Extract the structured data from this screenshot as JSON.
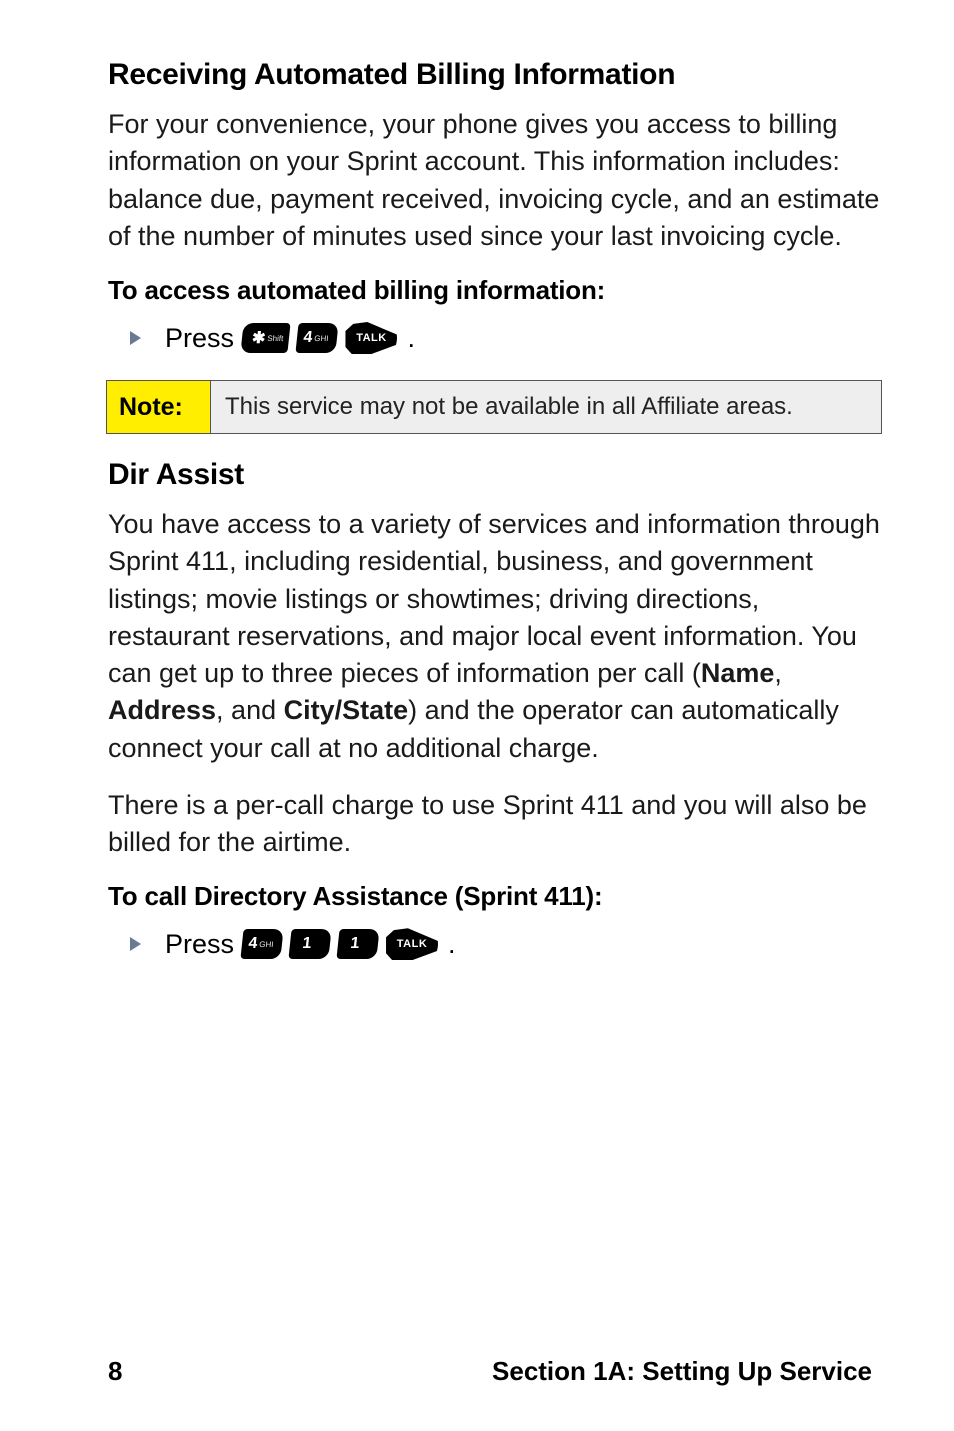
{
  "section1": {
    "heading": "Receiving Automated Billing Information",
    "body": "For your convenience, your phone gives you access to billing information on your Sprint account. This information includes: balance due, payment received, invoicing cycle, and an estimate of the number of minutes used since your last invoicing cycle.",
    "instruction": "To access automated billing information:",
    "press_label": "Press",
    "keys": {
      "star": "✱",
      "star_sub": "Shift",
      "four": "4",
      "four_sub": "GHI",
      "talk": "TALK"
    },
    "period": "."
  },
  "note": {
    "label": "Note:",
    "text": "This service may not be available in all Affiliate areas."
  },
  "section2": {
    "heading": "Dir Assist",
    "body_pre": "You have access to a variety of services and information through Sprint 411, including residential, business, and government listings; movie listings or showtimes; driving directions, restaurant reservations, and major local event information. You can get up to three pieces of information per call (",
    "bold_name": "Name",
    "sep1": ", ",
    "bold_address": "Address",
    "sep2": ", and ",
    "bold_citystate": "City/State",
    "body_post": ") and the operator can automatically connect your call at no additional charge.",
    "body2": "There is a per-call charge to use Sprint 411 and you will also be billed for the airtime.",
    "instruction": "To call Directory Assistance (Sprint 411):",
    "press_label": "Press",
    "keys": {
      "four": "4",
      "four_sub": "GHI",
      "one_a": "1",
      "one_b": "1",
      "talk": "TALK"
    },
    "period": "."
  },
  "footer": {
    "page": "8",
    "section": "Section 1A: Setting Up Service"
  },
  "colors": {
    "note_bg": "#ffee00",
    "note_body_bg": "#eeeeee",
    "bullet": "#6a7a92",
    "text": "#000000"
  }
}
